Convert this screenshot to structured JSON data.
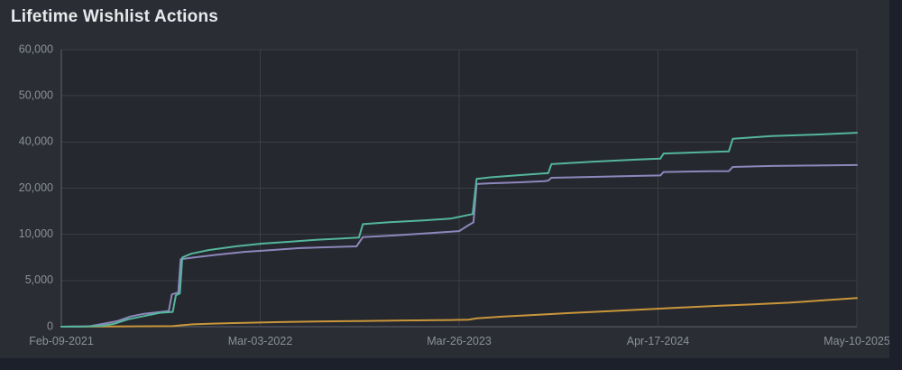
{
  "page": {
    "title": "Lifetime Wishlist Actions"
  },
  "colors": {
    "page_bg": "#1b202b",
    "card_bg": "#2a2d34",
    "plot_bg": "#25282e",
    "grid": "#3b3e45",
    "axis": "#60646b",
    "title": "#e8e9eb",
    "tick_label": "#8c9099"
  },
  "chart_data": {
    "type": "line",
    "title": "Lifetime Wishlist Actions",
    "xlabel": "",
    "ylabel": "",
    "grid": true,
    "legend": "none",
    "x_tick_labels": [
      "Feb-09-2021",
      "Mar-03-2022",
      "Mar-26-2023",
      "Apr-17-2024",
      "May-10-2025"
    ],
    "y_tick_values": [
      0,
      5000,
      10000,
      20000,
      40000,
      50000,
      60000
    ],
    "y_tick_labels": [
      "0",
      "5,000",
      "10,000",
      "20,000",
      "40,000",
      "50,000",
      "60,000"
    ],
    "y_scale_note": "ticks are equally spaced on screen (non-linear value axis)",
    "x_note": "x values are fractions of the time axis from Feb-09-2021 (0) to May-10-2025 (1)",
    "series": [
      {
        "name": "teal",
        "color": "#54b69c",
        "points": [
          [
            0.0,
            0
          ],
          [
            0.03,
            30
          ],
          [
            0.051,
            100
          ],
          [
            0.066,
            300
          ],
          [
            0.084,
            800
          ],
          [
            0.107,
            1200
          ],
          [
            0.124,
            1500
          ],
          [
            0.14,
            1600
          ],
          [
            0.144,
            3400
          ],
          [
            0.149,
            3600
          ],
          [
            0.152,
            7500
          ],
          [
            0.163,
            7900
          ],
          [
            0.185,
            8300
          ],
          [
            0.219,
            8700
          ],
          [
            0.253,
            9000
          ],
          [
            0.287,
            9200
          ],
          [
            0.32,
            9400
          ],
          [
            0.374,
            9650
          ],
          [
            0.379,
            12200
          ],
          [
            0.41,
            12600
          ],
          [
            0.455,
            13000
          ],
          [
            0.489,
            13400
          ],
          [
            0.517,
            14400
          ],
          [
            0.522,
            24000
          ],
          [
            0.539,
            24700
          ],
          [
            0.573,
            25600
          ],
          [
            0.607,
            26400
          ],
          [
            0.612,
            26500
          ],
          [
            0.616,
            30400
          ],
          [
            0.669,
            31500
          ],
          [
            0.725,
            32400
          ],
          [
            0.753,
            32800
          ],
          [
            0.757,
            35000
          ],
          [
            0.803,
            35500
          ],
          [
            0.839,
            35900
          ],
          [
            0.844,
            40700
          ],
          [
            0.893,
            41300
          ],
          [
            0.949,
            41600
          ],
          [
            1.0,
            42000
          ]
        ]
      },
      {
        "name": "purple",
        "color": "#8e87bd",
        "points": [
          [
            0.0,
            0
          ],
          [
            0.035,
            40
          ],
          [
            0.07,
            600
          ],
          [
            0.087,
            1100
          ],
          [
            0.104,
            1400
          ],
          [
            0.135,
            1700
          ],
          [
            0.139,
            3500
          ],
          [
            0.147,
            3700
          ],
          [
            0.15,
            7300
          ],
          [
            0.167,
            7500
          ],
          [
            0.196,
            7800
          ],
          [
            0.23,
            8100
          ],
          [
            0.264,
            8300
          ],
          [
            0.298,
            8500
          ],
          [
            0.331,
            8600
          ],
          [
            0.371,
            8700
          ],
          [
            0.379,
            9700
          ],
          [
            0.421,
            9900
          ],
          [
            0.466,
            10300
          ],
          [
            0.5,
            10700
          ],
          [
            0.512,
            12000
          ],
          [
            0.518,
            12600
          ],
          [
            0.522,
            21800
          ],
          [
            0.539,
            22100
          ],
          [
            0.573,
            22500
          ],
          [
            0.607,
            23000
          ],
          [
            0.612,
            23300
          ],
          [
            0.616,
            24500
          ],
          [
            0.669,
            24900
          ],
          [
            0.725,
            25300
          ],
          [
            0.753,
            25500
          ],
          [
            0.757,
            27000
          ],
          [
            0.814,
            27300
          ],
          [
            0.839,
            27400
          ],
          [
            0.844,
            29200
          ],
          [
            0.893,
            29600
          ],
          [
            0.949,
            29800
          ],
          [
            1.0,
            30000
          ]
        ]
      },
      {
        "name": "orange",
        "color": "#c9963b",
        "points": [
          [
            0.0,
            0
          ],
          [
            0.14,
            60
          ],
          [
            0.15,
            150
          ],
          [
            0.165,
            250
          ],
          [
            0.19,
            330
          ],
          [
            0.23,
            420
          ],
          [
            0.275,
            500
          ],
          [
            0.32,
            560
          ],
          [
            0.375,
            620
          ],
          [
            0.43,
            670
          ],
          [
            0.49,
            720
          ],
          [
            0.512,
            760
          ],
          [
            0.522,
            900
          ],
          [
            0.556,
            1100
          ],
          [
            0.6,
            1300
          ],
          [
            0.645,
            1500
          ],
          [
            0.69,
            1680
          ],
          [
            0.735,
            1880
          ],
          [
            0.78,
            2070
          ],
          [
            0.825,
            2260
          ],
          [
            0.87,
            2420
          ],
          [
            0.915,
            2600
          ],
          [
            0.95,
            2800
          ],
          [
            1.0,
            3100
          ]
        ]
      }
    ]
  }
}
